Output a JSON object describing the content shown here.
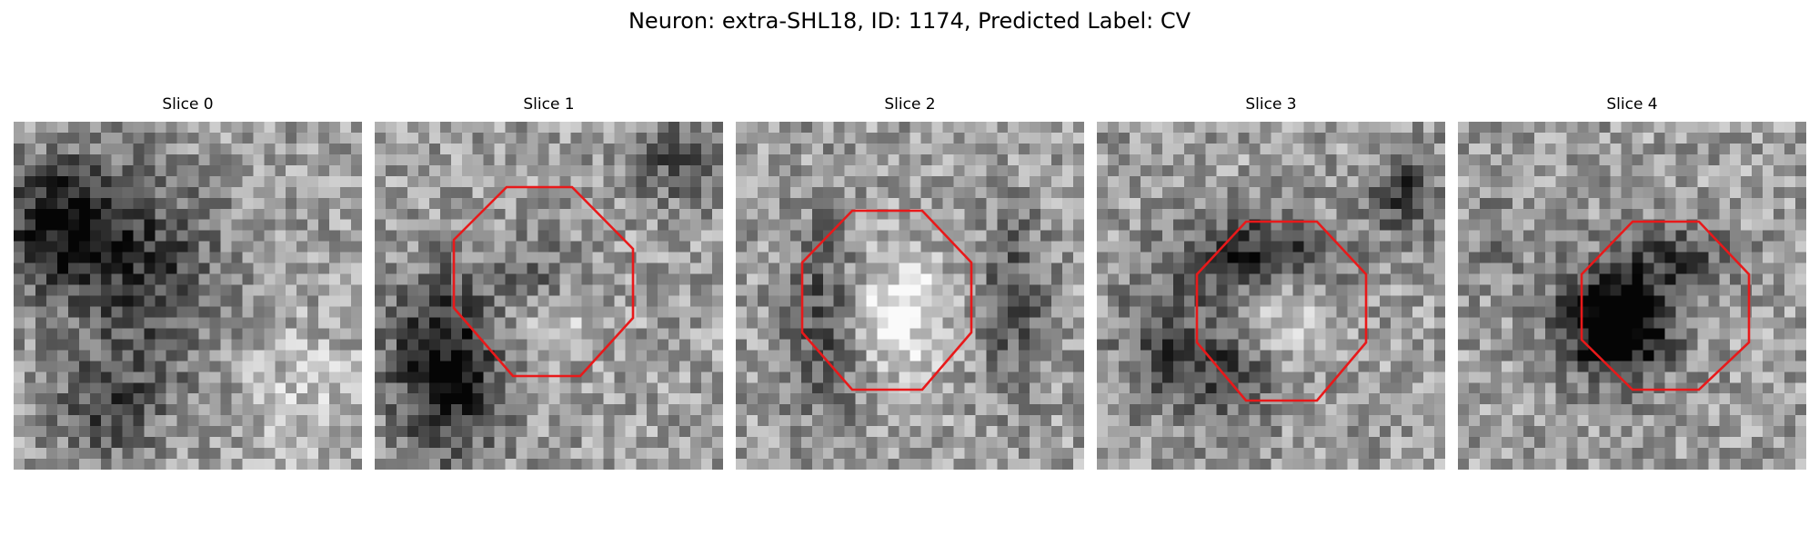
{
  "figure": {
    "title": "Neuron: extra-SHL18, ID: 1174, Predicted Label: CV"
  },
  "panels": [
    {
      "title": "Slice 0",
      "has_outline": false,
      "dark_region": "diffuse"
    },
    {
      "title": "Slice 1",
      "has_outline": true,
      "dark_region": "lower-left"
    },
    {
      "title": "Slice 2",
      "has_outline": true,
      "dark_region": "light-center"
    },
    {
      "title": "Slice 3",
      "has_outline": true,
      "dark_region": "ring"
    },
    {
      "title": "Slice 4",
      "has_outline": true,
      "dark_region": "left-center"
    }
  ],
  "colors": {
    "outline": "#e8191a",
    "background": "#ffffff"
  }
}
